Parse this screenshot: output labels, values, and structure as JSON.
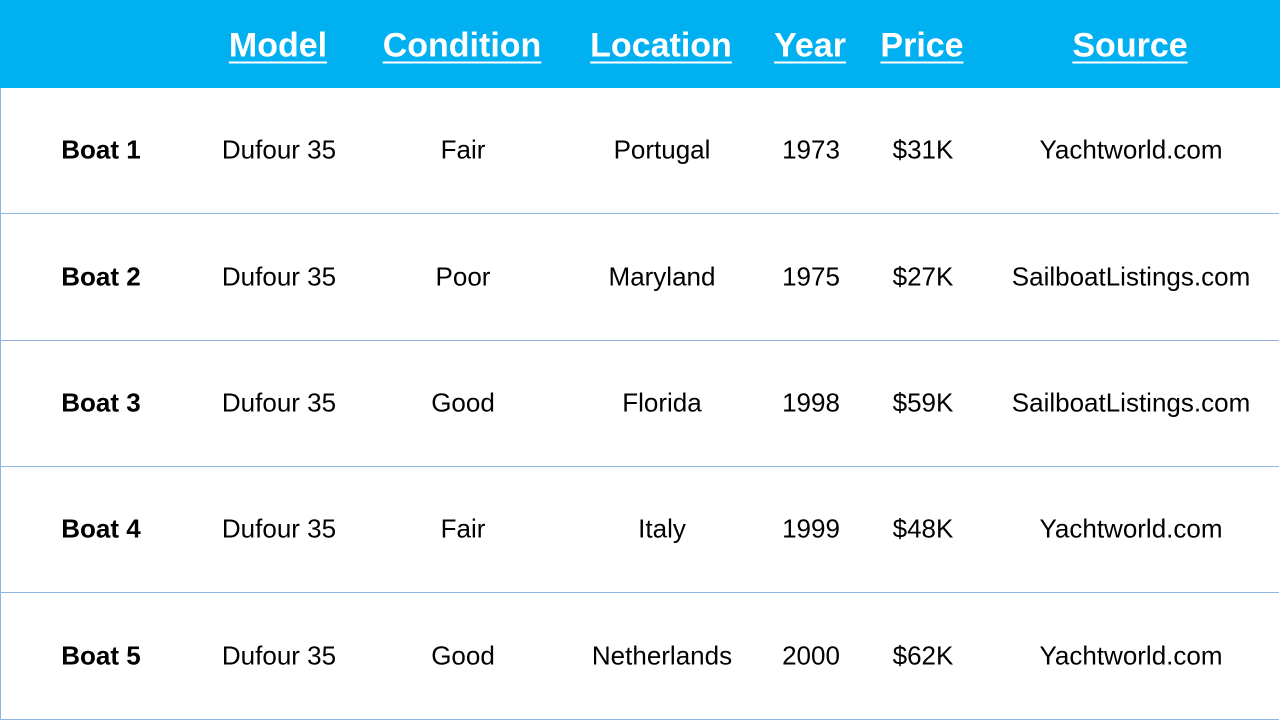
{
  "table": {
    "columns": [
      "Model",
      "Condition",
      "Location",
      "Year",
      "Price",
      "Source"
    ],
    "rows": [
      {
        "label": "Boat 1",
        "cells": [
          "Dufour 35",
          "Fair",
          "Portugal",
          "1973",
          "$31K",
          "Yachtworld.com"
        ]
      },
      {
        "label": "Boat 2",
        "cells": [
          "Dufour 35",
          "Poor",
          "Maryland",
          "1975",
          "$27K",
          "SailboatListings.com"
        ]
      },
      {
        "label": "Boat 3",
        "cells": [
          "Dufour 35",
          "Good",
          "Florida",
          "1998",
          "$59K",
          "SailboatListings.com"
        ]
      },
      {
        "label": "Boat 4",
        "cells": [
          "Dufour 35",
          "Fair",
          "Italy",
          "1999",
          "$48K",
          "Yachtworld.com"
        ]
      },
      {
        "label": "Boat 5",
        "cells": [
          "Dufour 35",
          "Good",
          "Netherlands",
          "2000",
          "$62K",
          "Yachtworld.com"
        ]
      }
    ]
  }
}
